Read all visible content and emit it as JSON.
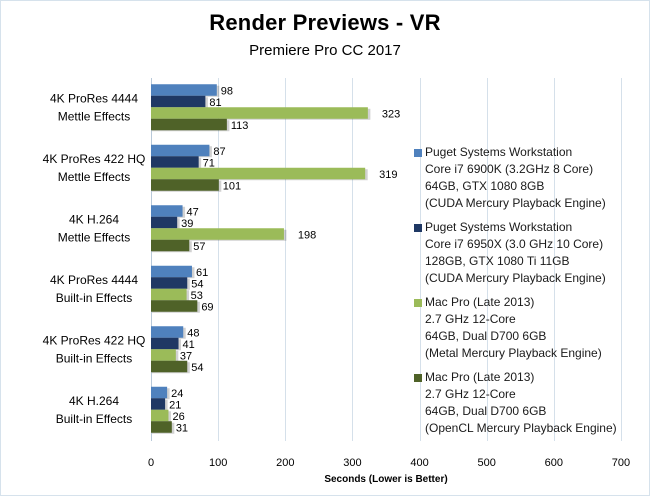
{
  "title": "Render Previews - VR",
  "subtitle": "Premiere Pro CC 2017",
  "chart_data": {
    "type": "bar",
    "orientation": "horizontal",
    "title": "Render Previews - VR",
    "subtitle": "Premiere Pro CC 2017",
    "xlabel": "Seconds  (Lower is Better)",
    "ylabel": "",
    "xlim": [
      0,
      700
    ],
    "x_ticks": [
      "0",
      "100",
      "200",
      "300",
      "400",
      "500",
      "600",
      "700"
    ],
    "grid": true,
    "legend_position": "right",
    "categories": [
      [
        "4K ProRes 4444",
        "Mettle Effects"
      ],
      [
        "4K ProRes 422 HQ",
        "Mettle Effects"
      ],
      [
        "4K H.264",
        "Mettle Effects"
      ],
      [
        "4K ProRes 4444",
        "Built-in Effects"
      ],
      [
        "4K ProRes 422 HQ",
        "Built-in Effects"
      ],
      [
        "4K H.264",
        "Built-in Effects"
      ]
    ],
    "series": [
      {
        "name": [
          "Puget Systems Workstation",
          "Core i7 6900K (3.2GHz 8 Core)",
          "64GB, GTX 1080 8GB",
          "(CUDA Mercury Playback Engine)"
        ],
        "color": "#4f81bd",
        "values": [
          98,
          87,
          47,
          61,
          48,
          24
        ]
      },
      {
        "name": [
          "Puget Systems Workstation",
          "Core i7 6950X (3.0 GHz 10 Core)",
          "128GB, GTX 1080 Ti 11GB",
          "(CUDA Mercury Playback Engine)"
        ],
        "color": "#1f3864",
        "values": [
          81,
          71,
          39,
          54,
          41,
          21
        ]
      },
      {
        "name": [
          "Mac Pro (Late 2013)",
          "2.7 GHz 12-Core",
          "64GB, Dual D700 6GB",
          "(Metal Mercury Playback Engine)"
        ],
        "color": "#9bbb59",
        "values": [
          323,
          319,
          198,
          53,
          37,
          26
        ]
      },
      {
        "name": [
          "Mac Pro (Late 2013)",
          "2.7 GHz 12-Core",
          "64GB, Dual D700 6GB",
          "(OpenCL Mercury Playback Engine)"
        ],
        "color": "#4f6228",
        "values": [
          113,
          101,
          57,
          69,
          54,
          31
        ]
      }
    ]
  }
}
